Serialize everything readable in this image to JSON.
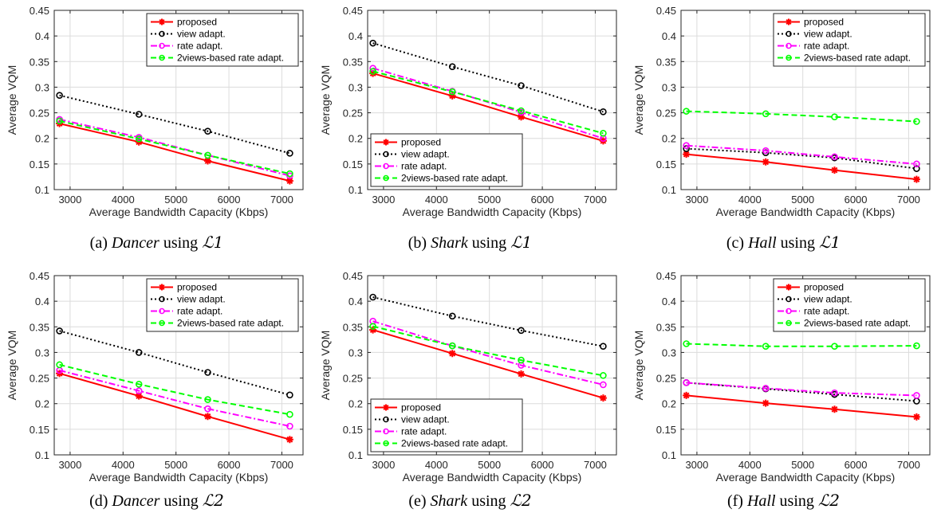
{
  "chart_data": [
    {
      "type": "line",
      "caption": {
        "label": "(a)",
        "name": "Dancer",
        "using": "using",
        "scheme": "ℒ1"
      },
      "xlabel": "Average Bandwidth Capacity (Kbps)",
      "ylabel": "Average VQM",
      "xlim": [
        2700,
        7400
      ],
      "ylim": [
        0.1,
        0.45
      ],
      "xticks": [
        3000,
        4000,
        5000,
        6000,
        7000
      ],
      "yticks": [
        0.1,
        0.15,
        0.2,
        0.25,
        0.3,
        0.35,
        0.4,
        0.45
      ],
      "grid": true,
      "legend": "top-right",
      "x": [
        2800,
        4300,
        5600,
        7150
      ],
      "series": [
        {
          "name": "proposed",
          "values": [
            0.229,
            0.193,
            0.156,
            0.117
          ],
          "color": "#ff0000",
          "dash": "solid",
          "marker": "star"
        },
        {
          "name": "view adapt.",
          "values": [
            0.284,
            0.247,
            0.214,
            0.171
          ],
          "color": "#000000",
          "dash": "dot",
          "marker": "circle"
        },
        {
          "name": "rate adapt.",
          "values": [
            0.237,
            0.202,
            0.167,
            0.127
          ],
          "color": "#ff00ff",
          "dash": "dashdot",
          "marker": "circle"
        },
        {
          "name": "2views-based rate adapt.",
          "values": [
            0.234,
            0.199,
            0.167,
            0.131
          ],
          "color": "#00ff00",
          "dash": "dash",
          "marker": "circle"
        }
      ]
    },
    {
      "type": "line",
      "caption": {
        "label": "(b)",
        "name": "Shark",
        "using": "using",
        "scheme": "ℒ1"
      },
      "xlabel": "Average Bandwidth Capacity (Kbps)",
      "ylabel": "Average VQM",
      "xlim": [
        2700,
        7400
      ],
      "ylim": [
        0.1,
        0.45
      ],
      "xticks": [
        3000,
        4000,
        5000,
        6000,
        7000
      ],
      "yticks": [
        0.1,
        0.15,
        0.2,
        0.25,
        0.3,
        0.35,
        0.4,
        0.45
      ],
      "grid": true,
      "legend": "bottom-left",
      "x": [
        2800,
        4300,
        5600,
        7150
      ],
      "series": [
        {
          "name": "proposed",
          "values": [
            0.327,
            0.283,
            0.242,
            0.195
          ],
          "color": "#ff0000",
          "dash": "solid",
          "marker": "star"
        },
        {
          "name": "view adapt.",
          "values": [
            0.386,
            0.34,
            0.303,
            0.252
          ],
          "color": "#000000",
          "dash": "dot",
          "marker": "circle"
        },
        {
          "name": "rate adapt.",
          "values": [
            0.337,
            0.292,
            0.251,
            0.2
          ],
          "color": "#ff00ff",
          "dash": "dashdot",
          "marker": "circle"
        },
        {
          "name": "2views-based rate adapt.",
          "values": [
            0.331,
            0.291,
            0.254,
            0.21
          ],
          "color": "#00ff00",
          "dash": "dash",
          "marker": "circle"
        }
      ]
    },
    {
      "type": "line",
      "caption": {
        "label": "(c)",
        "name": "Hall",
        "using": "using",
        "scheme": "ℒ1"
      },
      "xlabel": "Average Bandwidth Capacity (Kbps)",
      "ylabel": "Average VQM",
      "xlim": [
        2700,
        7400
      ],
      "ylim": [
        0.1,
        0.45
      ],
      "xticks": [
        3000,
        4000,
        5000,
        6000,
        7000
      ],
      "yticks": [
        0.1,
        0.15,
        0.2,
        0.25,
        0.3,
        0.35,
        0.4,
        0.45
      ],
      "grid": true,
      "legend": "top-right",
      "x": [
        2800,
        4300,
        5600,
        7150
      ],
      "series": [
        {
          "name": "proposed",
          "values": [
            0.169,
            0.154,
            0.138,
            0.12
          ],
          "color": "#ff0000",
          "dash": "solid",
          "marker": "star"
        },
        {
          "name": "view adapt.",
          "values": [
            0.18,
            0.172,
            0.162,
            0.141
          ],
          "color": "#000000",
          "dash": "dot",
          "marker": "circle"
        },
        {
          "name": "rate adapt.",
          "values": [
            0.186,
            0.176,
            0.164,
            0.15
          ],
          "color": "#ff00ff",
          "dash": "dashdot",
          "marker": "circle"
        },
        {
          "name": "2views-based rate adapt.",
          "values": [
            0.253,
            0.248,
            0.242,
            0.233
          ],
          "color": "#00ff00",
          "dash": "dash",
          "marker": "circle"
        }
      ]
    },
    {
      "type": "line",
      "caption": {
        "label": "(d)",
        "name": "Dancer",
        "using": "using",
        "scheme": "ℒ2"
      },
      "xlabel": "Average Bandwidth Capacity (Kbps)",
      "ylabel": "Average VQM",
      "xlim": [
        2700,
        7400
      ],
      "ylim": [
        0.1,
        0.45
      ],
      "xticks": [
        3000,
        4000,
        5000,
        6000,
        7000
      ],
      "yticks": [
        0.1,
        0.15,
        0.2,
        0.25,
        0.3,
        0.35,
        0.4,
        0.45
      ],
      "grid": true,
      "legend": "top-right",
      "x": [
        2800,
        4300,
        5600,
        7150
      ],
      "series": [
        {
          "name": "proposed",
          "values": [
            0.259,
            0.215,
            0.175,
            0.13
          ],
          "color": "#ff0000",
          "dash": "solid",
          "marker": "star"
        },
        {
          "name": "view adapt.",
          "values": [
            0.342,
            0.3,
            0.261,
            0.217
          ],
          "color": "#000000",
          "dash": "dot",
          "marker": "circle"
        },
        {
          "name": "rate adapt.",
          "values": [
            0.265,
            0.225,
            0.19,
            0.156
          ],
          "color": "#ff00ff",
          "dash": "dashdot",
          "marker": "circle"
        },
        {
          "name": "2views-based rate adapt.",
          "values": [
            0.276,
            0.238,
            0.208,
            0.179
          ],
          "color": "#00ff00",
          "dash": "dash",
          "marker": "circle"
        }
      ]
    },
    {
      "type": "line",
      "caption": {
        "label": "(e)",
        "name": "Shark",
        "using": "using",
        "scheme": "ℒ2"
      },
      "xlabel": "Average Bandwidth Capacity (Kbps)",
      "ylabel": "Average VQM",
      "xlim": [
        2700,
        7400
      ],
      "ylim": [
        0.1,
        0.45
      ],
      "xticks": [
        3000,
        4000,
        5000,
        6000,
        7000
      ],
      "yticks": [
        0.1,
        0.15,
        0.2,
        0.25,
        0.3,
        0.35,
        0.4,
        0.45
      ],
      "grid": true,
      "legend": "bottom-left",
      "x": [
        2800,
        4300,
        5600,
        7150
      ],
      "series": [
        {
          "name": "proposed",
          "values": [
            0.344,
            0.298,
            0.258,
            0.211
          ],
          "color": "#ff0000",
          "dash": "solid",
          "marker": "star"
        },
        {
          "name": "view adapt.",
          "values": [
            0.408,
            0.371,
            0.343,
            0.312
          ],
          "color": "#000000",
          "dash": "dot",
          "marker": "circle"
        },
        {
          "name": "rate adapt.",
          "values": [
            0.361,
            0.313,
            0.275,
            0.237
          ],
          "color": "#ff00ff",
          "dash": "dashdot",
          "marker": "circle"
        },
        {
          "name": "2views-based rate adapt.",
          "values": [
            0.351,
            0.313,
            0.285,
            0.255
          ],
          "color": "#00ff00",
          "dash": "dash",
          "marker": "circle"
        }
      ]
    },
    {
      "type": "line",
      "caption": {
        "label": "(f)",
        "name": "Hall",
        "using": "using",
        "scheme": "ℒ2"
      },
      "xlabel": "Average Bandwidth Capacity (Kbps)",
      "ylabel": "Average VQM",
      "xlim": [
        2700,
        7400
      ],
      "ylim": [
        0.1,
        0.45
      ],
      "xticks": [
        3000,
        4000,
        5000,
        6000,
        7000
      ],
      "yticks": [
        0.1,
        0.15,
        0.2,
        0.25,
        0.3,
        0.35,
        0.4,
        0.45
      ],
      "grid": true,
      "legend": "top-right",
      "x": [
        2800,
        4300,
        5600,
        7150
      ],
      "series": [
        {
          "name": "proposed",
          "values": [
            0.216,
            0.201,
            0.189,
            0.174
          ],
          "color": "#ff0000",
          "dash": "solid",
          "marker": "star"
        },
        {
          "name": "view adapt.",
          "values": [
            0.241,
            0.229,
            0.218,
            0.205
          ],
          "color": "#000000",
          "dash": "dot",
          "marker": "circle"
        },
        {
          "name": "rate adapt.",
          "values": [
            0.241,
            0.23,
            0.221,
            0.216
          ],
          "color": "#ff00ff",
          "dash": "dashdot",
          "marker": "circle"
        },
        {
          "name": "2views-based rate adapt.",
          "values": [
            0.317,
            0.312,
            0.312,
            0.313
          ],
          "color": "#00ff00",
          "dash": "dash",
          "marker": "circle"
        }
      ]
    }
  ]
}
